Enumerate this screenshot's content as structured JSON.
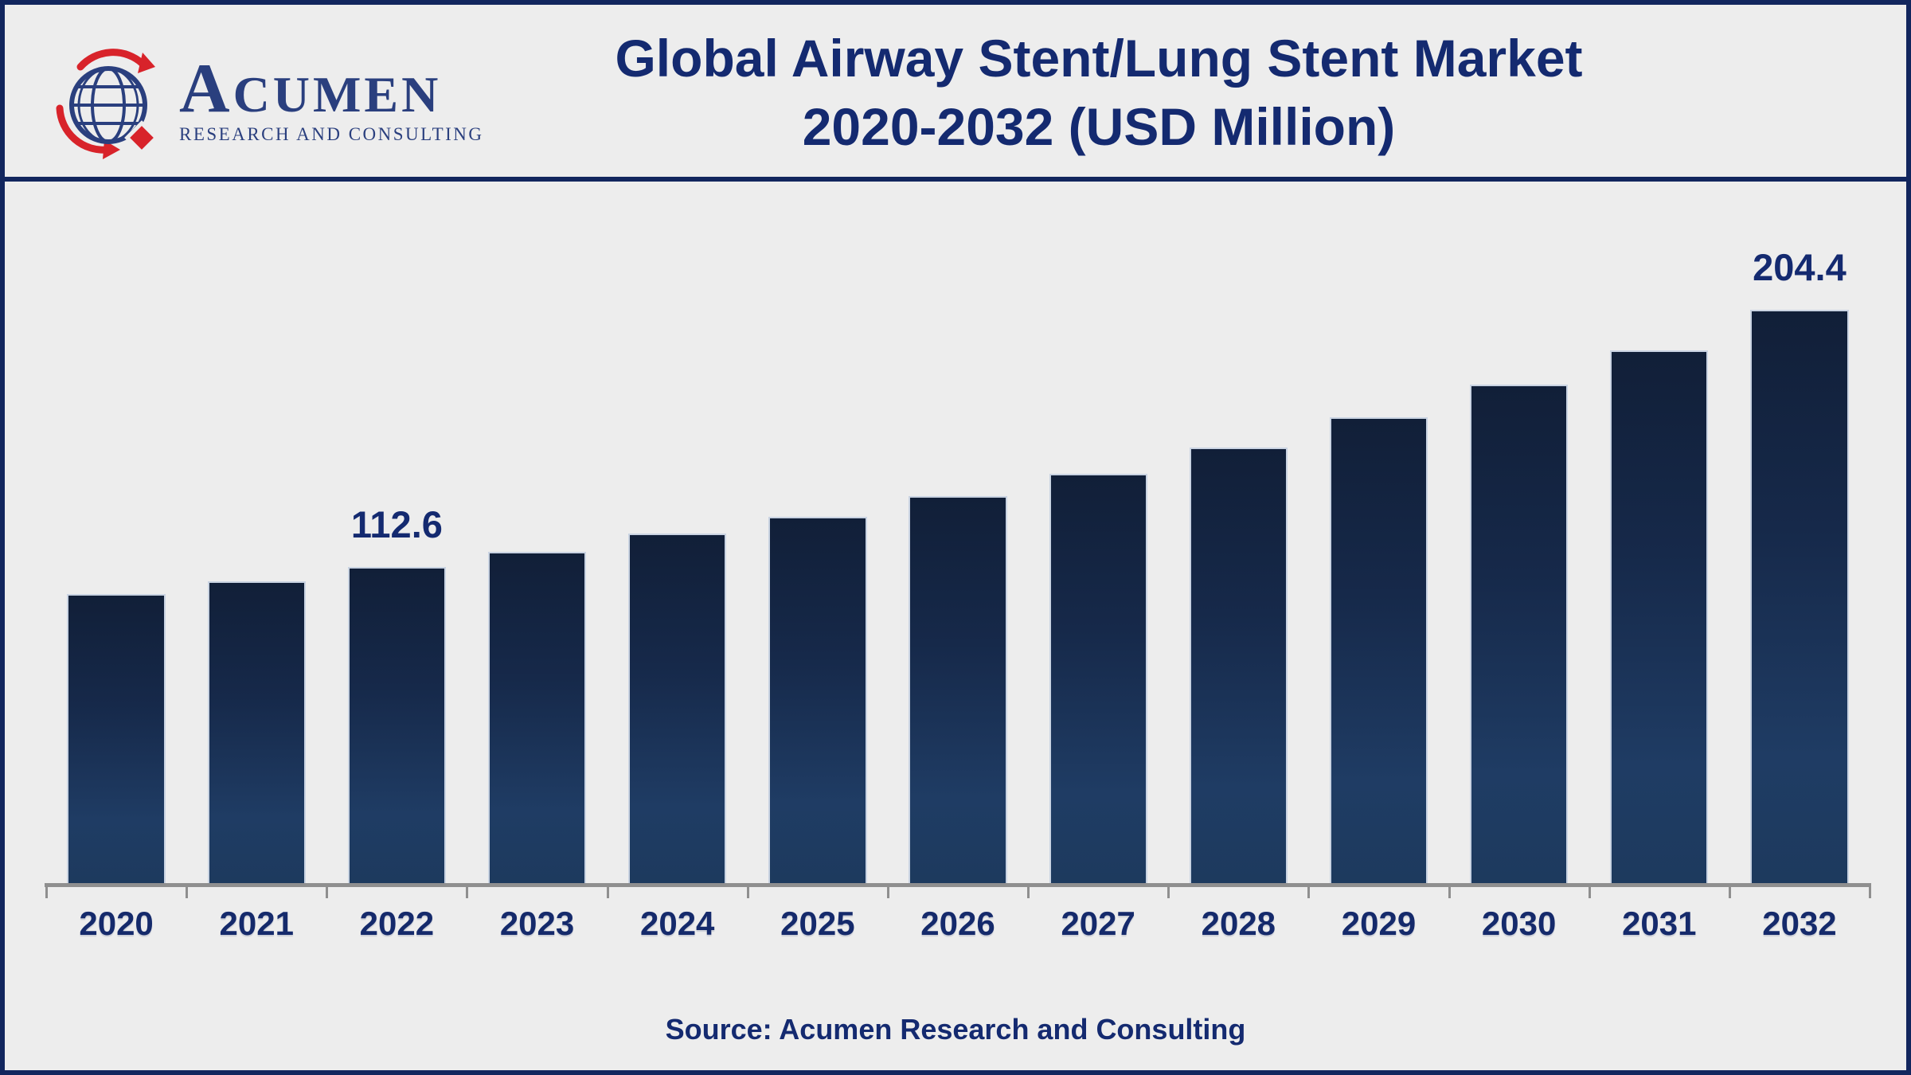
{
  "header": {
    "logo": {
      "wordmark": "Acumen",
      "subtitle": "RESEARCH AND CONSULTING"
    },
    "title_line1": "Global Airway Stent/Lung Stent Market",
    "title_line2": "2020-2032 (USD Million)"
  },
  "footer": {
    "source_text": "Source: Acumen Research and Consulting"
  },
  "colors": {
    "background": "#ededed",
    "border_navy": "#12265e",
    "title_navy": "#142a70",
    "bar_gradient_top": "#111f38",
    "bar_gradient_bottom": "#1f3c64",
    "bar_edge": "#c9d3e2",
    "axis_gray": "#8f8f8f",
    "logo_navy": "#2a3f7e",
    "logo_red": "#d8232a"
  },
  "chart_data": {
    "type": "bar",
    "title": "Global Airway Stent/Lung Stent Market 2020-2032 (USD Million)",
    "unit": "USD Million",
    "categories": [
      "2020",
      "2021",
      "2022",
      "2023",
      "2024",
      "2025",
      "2026",
      "2027",
      "2028",
      "2029",
      "2030",
      "2031",
      "2032"
    ],
    "values": [
      103.1,
      107.6,
      112.6,
      118.2,
      124.5,
      130.7,
      137.9,
      145.8,
      155.2,
      166.0,
      177.6,
      189.8,
      204.4
    ],
    "labeled_points": {
      "2022": "112.6",
      "2032": "204.4"
    },
    "xlabel": "",
    "ylabel": "",
    "ylim": [
      0,
      220
    ],
    "grid": false,
    "legend": false,
    "note": "only 2022 and 2032 carry visible data labels; other values estimated from bar heights"
  }
}
